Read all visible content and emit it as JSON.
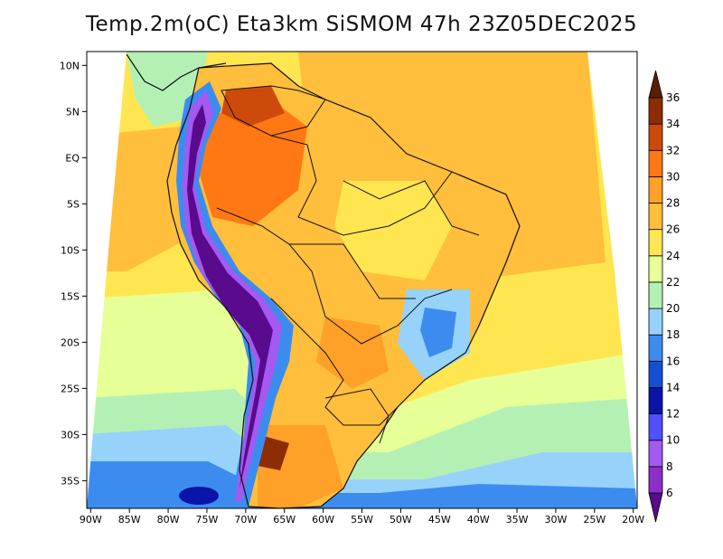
{
  "chart_data": {
    "type": "heatmap",
    "title": "Temp.2m(oC) Eta3km SiSMOM 47h 23Z05DEC2025",
    "variable": "Temp.2m",
    "units": "oC",
    "model": "Eta3km SiSMOM",
    "forecast_hour": "47h",
    "valid_time": "23Z05DEC2025",
    "x_ticks": [
      "90W",
      "85W",
      "80W",
      "75W",
      "70W",
      "65W",
      "60W",
      "55W",
      "50W",
      "45W",
      "40W",
      "35W",
      "30W",
      "25W",
      "20W"
    ],
    "x_values": [
      -90,
      -85,
      -80,
      -75,
      -70,
      -65,
      -60,
      -55,
      -50,
      -45,
      -40,
      -35,
      -30,
      -25,
      -20
    ],
    "y_ticks": [
      "10N",
      "5N",
      "EQ",
      "5S",
      "10S",
      "15S",
      "20S",
      "25S",
      "30S",
      "35S"
    ],
    "y_values": [
      10,
      5,
      0,
      -5,
      -10,
      -15,
      -20,
      -25,
      -30,
      -35
    ],
    "xlim": [
      -90.5,
      -19.5
    ],
    "ylim": [
      -38,
      11.5
    ],
    "colorbar": {
      "levels": [
        6,
        8,
        10,
        12,
        14,
        16,
        18,
        20,
        22,
        24,
        26,
        28,
        30,
        32,
        34,
        36
      ],
      "labels": [
        "6",
        "8",
        "10",
        "12",
        "14",
        "16",
        "18",
        "20",
        "22",
        "24",
        "26",
        "28",
        "30",
        "32",
        "34",
        "36"
      ],
      "colors": [
        "#5a0a8c",
        "#8c2fc9",
        "#a25af0",
        "#5050ff",
        "#0a14a8",
        "#1450d2",
        "#3c8cf0",
        "#96d2fa",
        "#b4f0b4",
        "#e6ff96",
        "#ffe650",
        "#ffbe3c",
        "#ffa028",
        "#ff7814",
        "#cd4b0a",
        "#8c2d05",
        "#5a1e05"
      ]
    }
  }
}
